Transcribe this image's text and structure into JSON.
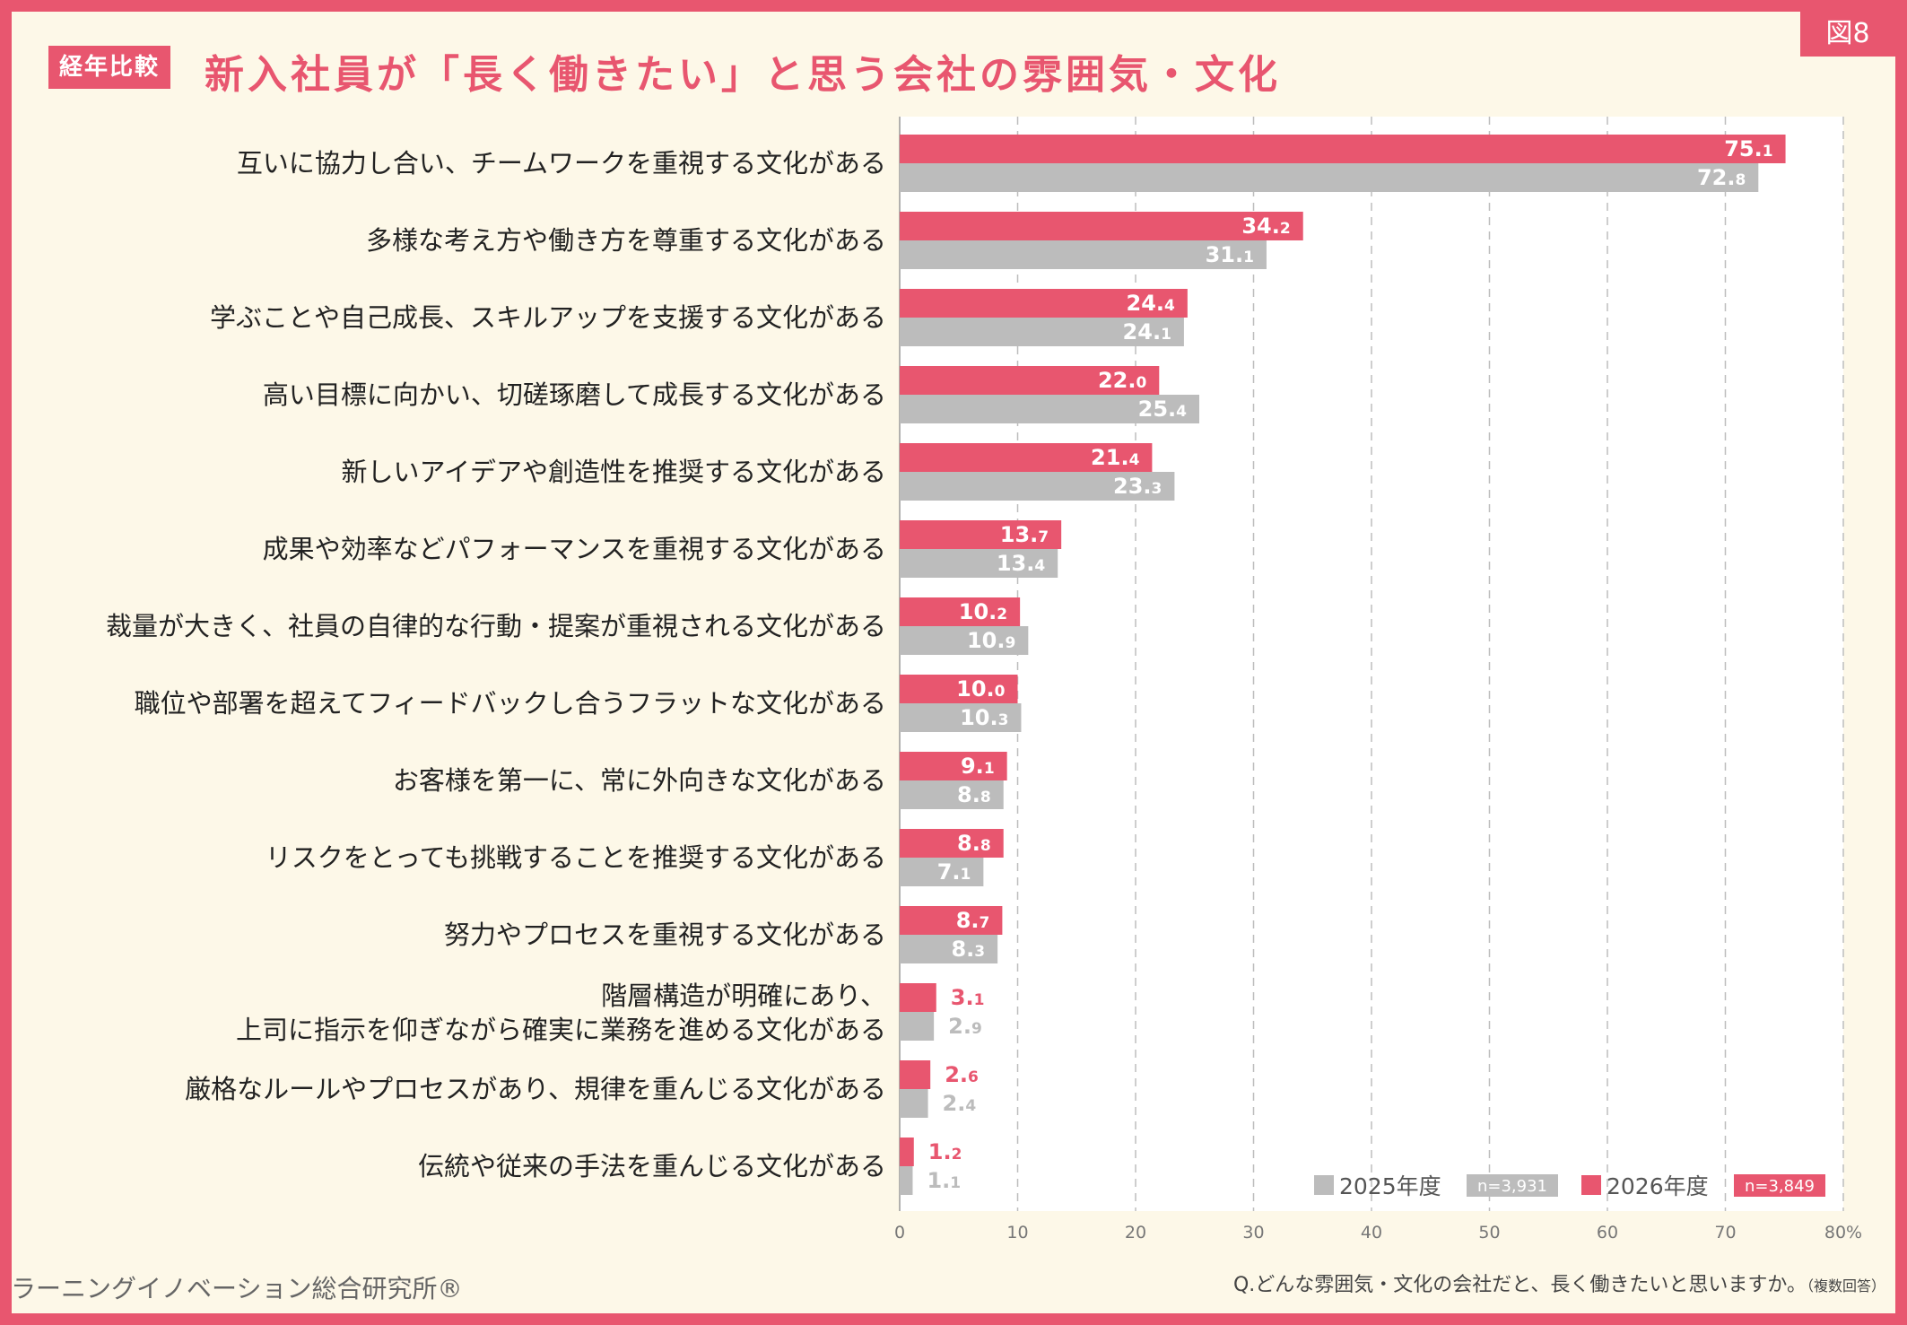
{
  "header": {
    "figure_tag": "図8",
    "badge": "経年比較",
    "title": "新入社員が「長く働きたい」と思う会社の雰囲気・文化"
  },
  "footer": {
    "organization": "ラーニングイノベーション総合研究所®",
    "question": "Q.どんな雰囲気・文化の会社だと、長く働きたいと思いますか。",
    "question_note": "（複数回答）"
  },
  "colors": {
    "red": "#e8566f",
    "gray": "#bcbcbc",
    "frame": "#e8566f",
    "background": "#fdf8e8"
  },
  "chart_data": {
    "type": "bar",
    "orientation": "horizontal",
    "title": "新入社員が「長く働きたい」と思う会社の雰囲気・文化",
    "categories": [
      [
        "互いに協力し合い、チームワークを重視する文化がある"
      ],
      [
        "多様な考え方や働き方を尊重する文化がある"
      ],
      [
        "学ぶことや自己成長、スキルアップを支援する文化がある"
      ],
      [
        "高い目標に向かい、切磋琢磨して成長する文化がある"
      ],
      [
        "新しいアイデアや創造性を推奨する文化がある"
      ],
      [
        "成果や効率などパフォーマンスを重視する文化がある"
      ],
      [
        "裁量が大きく、社員の自律的な行動・提案が重視される文化がある"
      ],
      [
        "職位や部署を超えてフィードバックし合うフラットな文化がある"
      ],
      [
        "お客様を第一に、常に外向きな文化がある"
      ],
      [
        "リスクをとっても挑戦することを推奨する文化がある"
      ],
      [
        "努力やプロセスを重視する文化がある"
      ],
      [
        "階層構造が明確にあり、",
        "上司に指示を仰ぎながら確実に業務を進める文化がある"
      ],
      [
        "厳格なルールやプロセスがあり、規律を重んじる文化がある"
      ],
      [
        "伝統や従来の手法を重んじる文化がある"
      ]
    ],
    "series": [
      {
        "name": "2026年度",
        "n": "n=3,849",
        "color": "#e8566f",
        "values": [
          75.1,
          34.2,
          24.4,
          22.0,
          21.4,
          13.7,
          10.2,
          10.0,
          9.1,
          8.8,
          8.7,
          3.1,
          2.6,
          1.2
        ]
      },
      {
        "name": "2025年度",
        "n": "n=3,931",
        "color": "#bcbcbc",
        "values": [
          72.8,
          31.1,
          24.1,
          25.4,
          23.3,
          13.4,
          10.9,
          10.3,
          8.8,
          7.1,
          8.3,
          2.9,
          2.4,
          1.1
        ]
      }
    ],
    "x_ticks": [
      "0",
      "10",
      "20",
      "30",
      "40",
      "50",
      "60",
      "70",
      "80%"
    ],
    "xlim": [
      0,
      80
    ],
    "grid": true,
    "legend_position": "bottom-right"
  }
}
